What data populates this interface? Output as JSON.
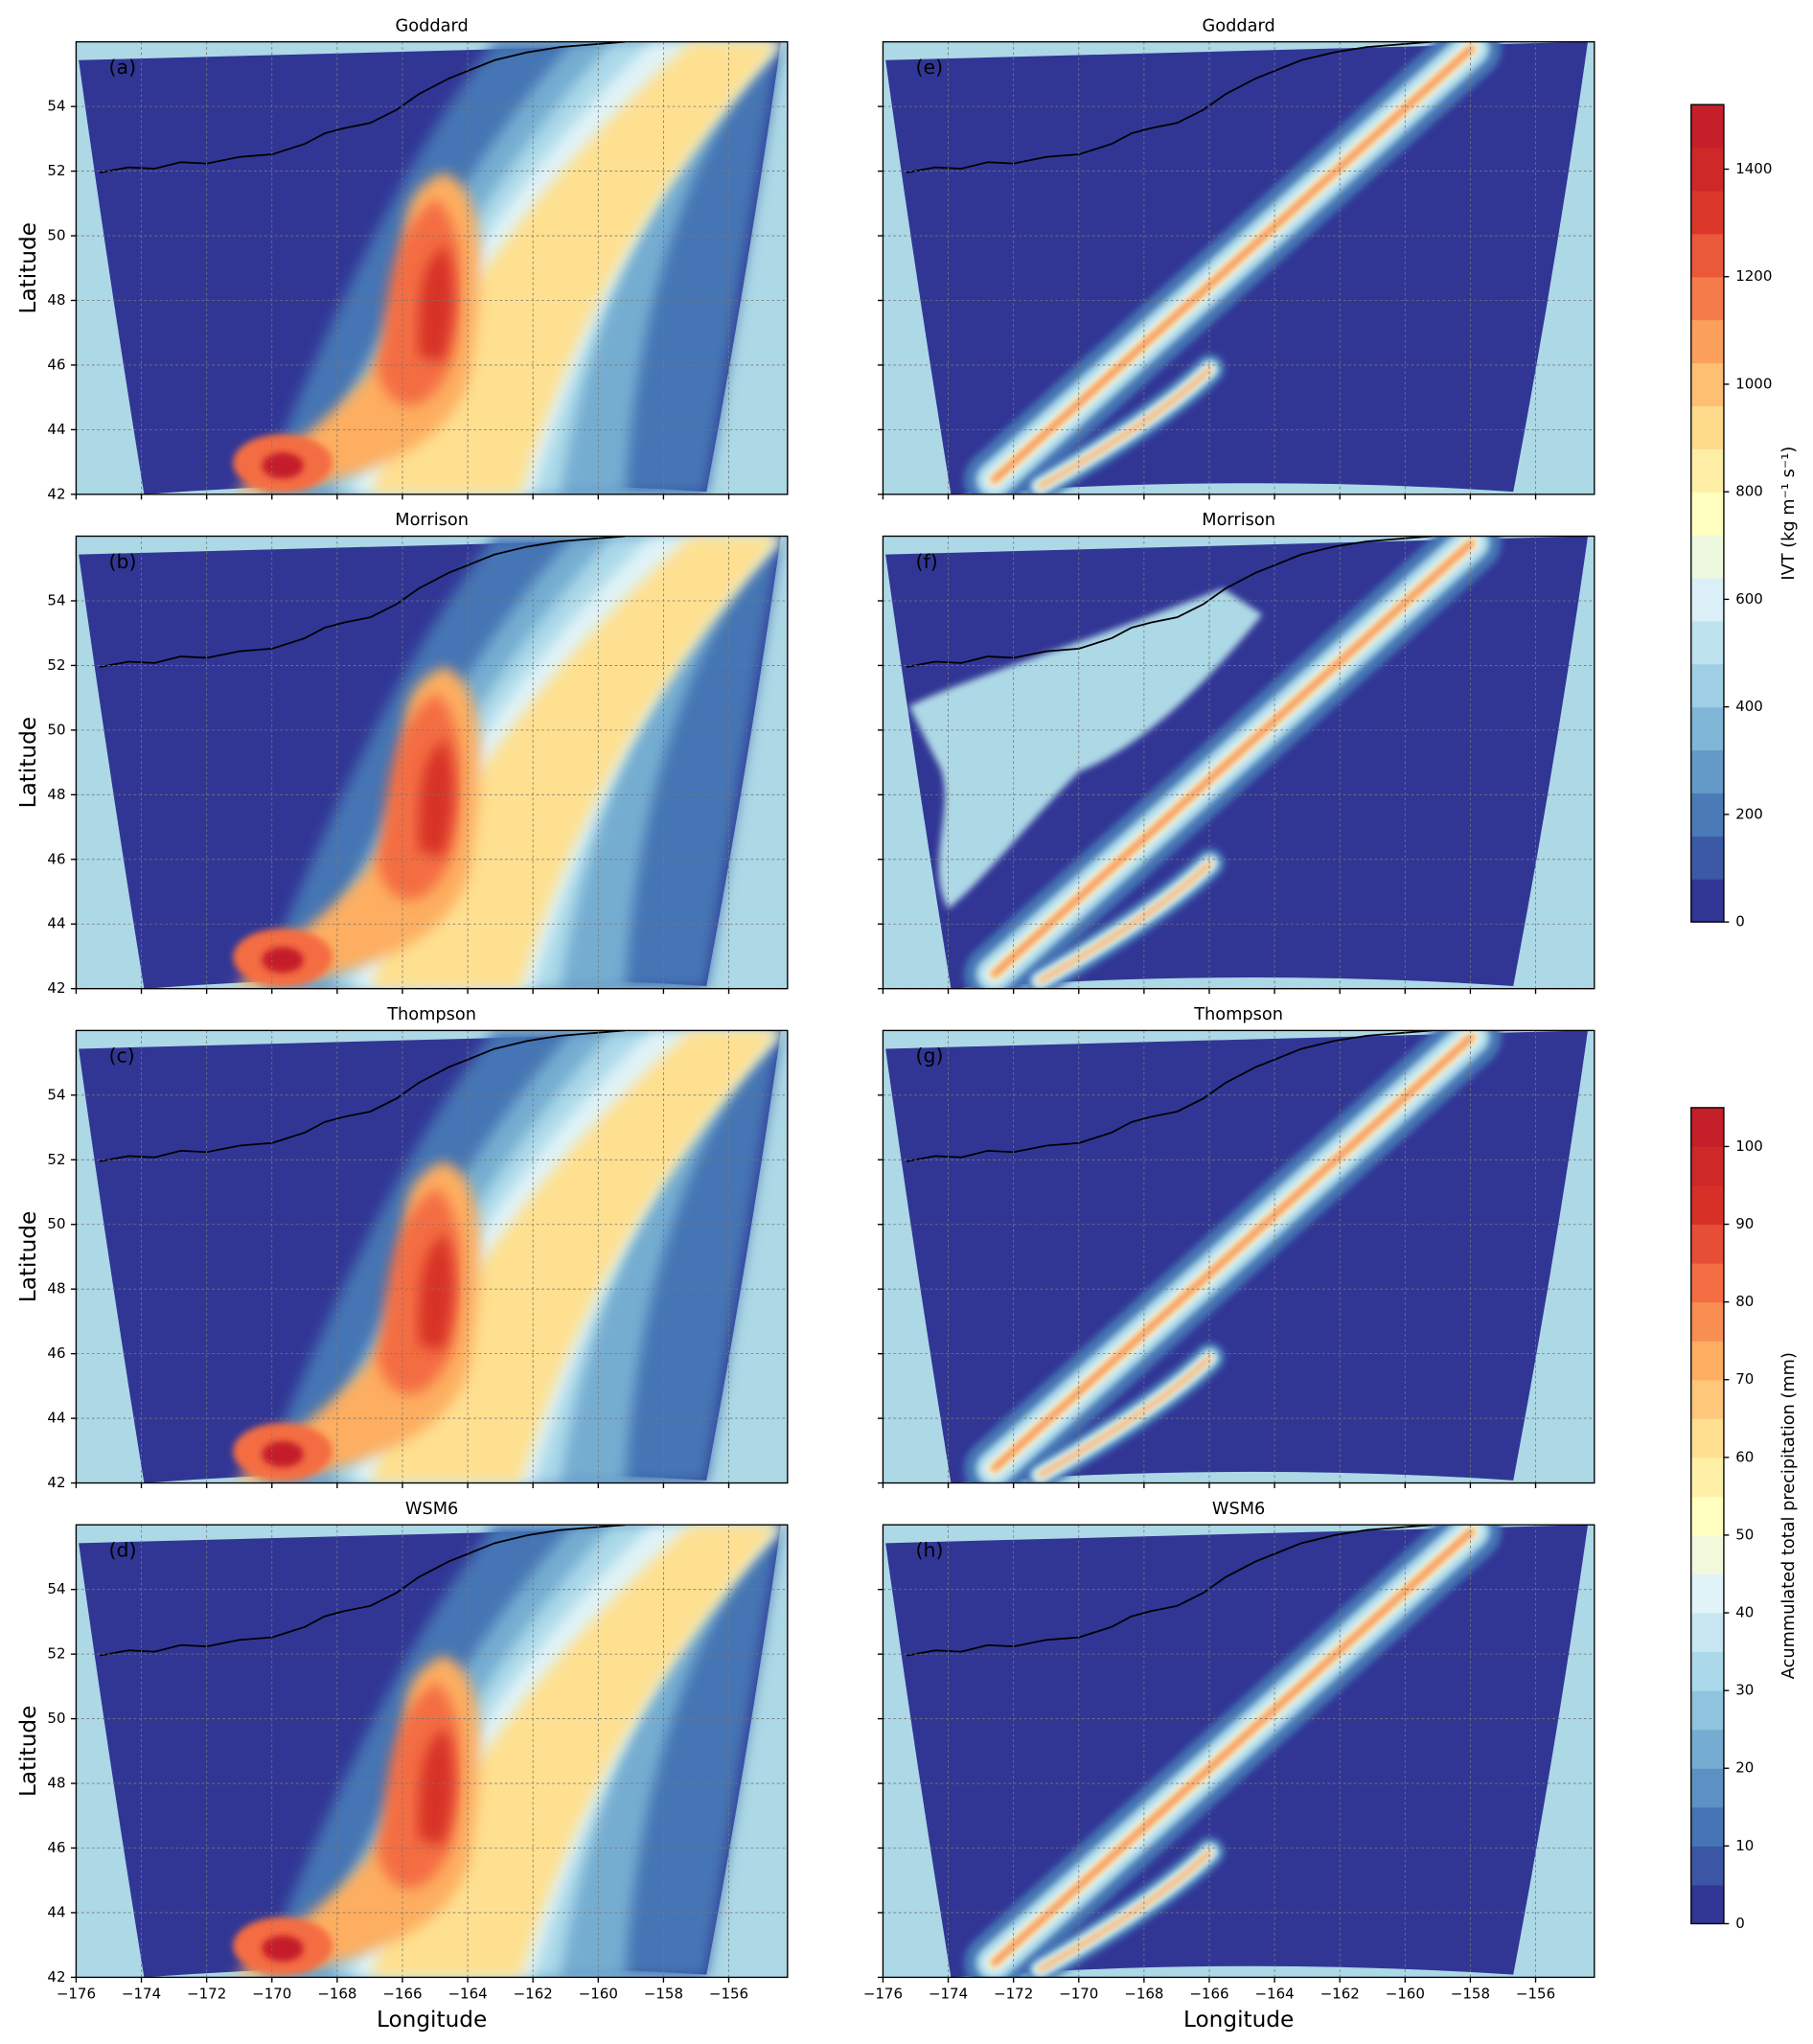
{
  "chart_data": [
    {
      "type": "contour",
      "title": "Goddard",
      "panel_label": "(a)",
      "xlim": [
        -176,
        -154.2
      ],
      "ylim": [
        42,
        56
      ],
      "xticks": [
        -176,
        -174,
        -172,
        -170,
        -168,
        -166,
        -164,
        -162,
        -160,
        -158,
        -156
      ],
      "yticks": [
        42,
        44,
        46,
        48,
        50,
        52,
        54
      ],
      "grid": true,
      "show_xtick_labels": false,
      "show_ytick_labels": true,
      "ylabel": "Latitude"
    },
    {
      "type": "contour",
      "title": "Morrison",
      "panel_label": "(b)",
      "xlim": [
        -176,
        -154.2
      ],
      "ylim": [
        42,
        56
      ],
      "xticks": [
        -176,
        -174,
        -172,
        -170,
        -168,
        -166,
        -164,
        -162,
        -160,
        -158,
        -156
      ],
      "yticks": [
        42,
        44,
        46,
        48,
        50,
        52,
        54
      ],
      "grid": true,
      "show_xtick_labels": false,
      "show_ytick_labels": true,
      "ylabel": "Latitude"
    },
    {
      "type": "contour",
      "title": "Thompson",
      "panel_label": "(c)",
      "xlim": [
        -176,
        -154.2
      ],
      "ylim": [
        42,
        56
      ],
      "xticks": [
        -176,
        -174,
        -172,
        -170,
        -168,
        -166,
        -164,
        -162,
        -160,
        -158,
        -156
      ],
      "yticks": [
        42,
        44,
        46,
        48,
        50,
        52,
        54
      ],
      "grid": true,
      "show_xtick_labels": false,
      "show_ytick_labels": true,
      "ylabel": "Latitude"
    },
    {
      "type": "contour",
      "title": "WSM6",
      "panel_label": "(d)",
      "xlim": [
        -176,
        -154.2
      ],
      "ylim": [
        42,
        56
      ],
      "xticks": [
        {
          "value": -176,
          "label": "−176"
        },
        {
          "value": -174,
          "label": "−174"
        },
        {
          "value": -172,
          "label": "−172"
        },
        {
          "value": -170,
          "label": "−170"
        },
        {
          "value": -168,
          "label": "−168"
        },
        {
          "value": -166,
          "label": "−166"
        },
        {
          "value": -164,
          "label": "−164"
        },
        {
          "value": -162,
          "label": "−162"
        },
        {
          "value": -160,
          "label": "−160"
        },
        {
          "value": -158,
          "label": "−158"
        },
        {
          "value": -156,
          "label": "−156"
        }
      ],
      "yticks": [
        42,
        44,
        46,
        48,
        50,
        52,
        54
      ],
      "grid": true,
      "show_xtick_labels": true,
      "show_ytick_labels": true,
      "xlabel": "Longitude",
      "ylabel": "Latitude"
    },
    {
      "type": "contour",
      "title": "Goddard",
      "panel_label": "(e)",
      "xlim": [
        -176,
        -154.2
      ],
      "ylim": [
        42,
        56
      ],
      "xticks": [
        -176,
        -174,
        -172,
        -170,
        -168,
        -166,
        -164,
        -162,
        -160,
        -158,
        -156
      ],
      "yticks": [
        42,
        44,
        46,
        48,
        50,
        52,
        54
      ],
      "grid": true,
      "show_xtick_labels": false,
      "show_ytick_labels": false
    },
    {
      "type": "contour",
      "title": "Morrison",
      "panel_label": "(f)",
      "xlim": [
        -176,
        -154.2
      ],
      "ylim": [
        42,
        56
      ],
      "xticks": [
        -176,
        -174,
        -172,
        -170,
        -168,
        -166,
        -164,
        -162,
        -160,
        -158,
        -156
      ],
      "yticks": [
        42,
        44,
        46,
        48,
        50,
        52,
        54
      ],
      "grid": true,
      "show_xtick_labels": false,
      "show_ytick_labels": false
    },
    {
      "type": "contour",
      "title": "Thompson",
      "panel_label": "(g)",
      "xlim": [
        -176,
        -154.2
      ],
      "ylim": [
        42,
        56
      ],
      "xticks": [
        -176,
        -174,
        -172,
        -170,
        -168,
        -166,
        -164,
        -162,
        -160,
        -158,
        -156
      ],
      "yticks": [
        42,
        44,
        46,
        48,
        50,
        52,
        54
      ],
      "grid": true,
      "show_xtick_labels": false,
      "show_ytick_labels": false
    },
    {
      "type": "contour",
      "title": "WSM6",
      "panel_label": "(h)",
      "xlim": [
        -176,
        -154.2
      ],
      "ylim": [
        42,
        56
      ],
      "xticks": [
        {
          "value": -176,
          "label": "−176"
        },
        {
          "value": -174,
          "label": "−174"
        },
        {
          "value": -172,
          "label": "−172"
        },
        {
          "value": -170,
          "label": "−170"
        },
        {
          "value": -168,
          "label": "−168"
        },
        {
          "value": -166,
          "label": "−166"
        },
        {
          "value": -164,
          "label": "−164"
        },
        {
          "value": -162,
          "label": "−162"
        },
        {
          "value": -160,
          "label": "−160"
        },
        {
          "value": -158,
          "label": "−158"
        },
        {
          "value": -156,
          "label": "−156"
        }
      ],
      "yticks": [
        42,
        44,
        46,
        48,
        50,
        52,
        54
      ],
      "grid": true,
      "show_xtick_labels": true,
      "show_ytick_labels": false,
      "xlabel": "Longitude"
    },
    {
      "type": "colorbar",
      "label": "IVT (kg m⁻¹ s⁻¹)",
      "ylim": [
        0,
        1520
      ],
      "yticks": [
        0,
        200,
        400,
        600,
        800,
        1000,
        1200,
        1400
      ],
      "levels_step": 80,
      "colormap": [
        "#313695",
        "#4575b4",
        "#74add1",
        "#abd9e9",
        "#e0f3f8",
        "#ffffbf",
        "#fee090",
        "#fdae61",
        "#f46d43",
        "#d73027",
        "#c51f29"
      ]
    },
    {
      "type": "colorbar",
      "label": "Acummulated total precipitation (mm)",
      "ylim": [
        0,
        105
      ],
      "yticks": [
        0,
        10,
        20,
        30,
        40,
        50,
        60,
        70,
        80,
        90,
        100
      ],
      "levels_step": 5,
      "colormap": [
        "#313695",
        "#4575b4",
        "#74add1",
        "#abd9e9",
        "#e0f3f8",
        "#ffffbf",
        "#fee090",
        "#fdae61",
        "#f46d43",
        "#d73027",
        "#c51f29"
      ]
    }
  ]
}
